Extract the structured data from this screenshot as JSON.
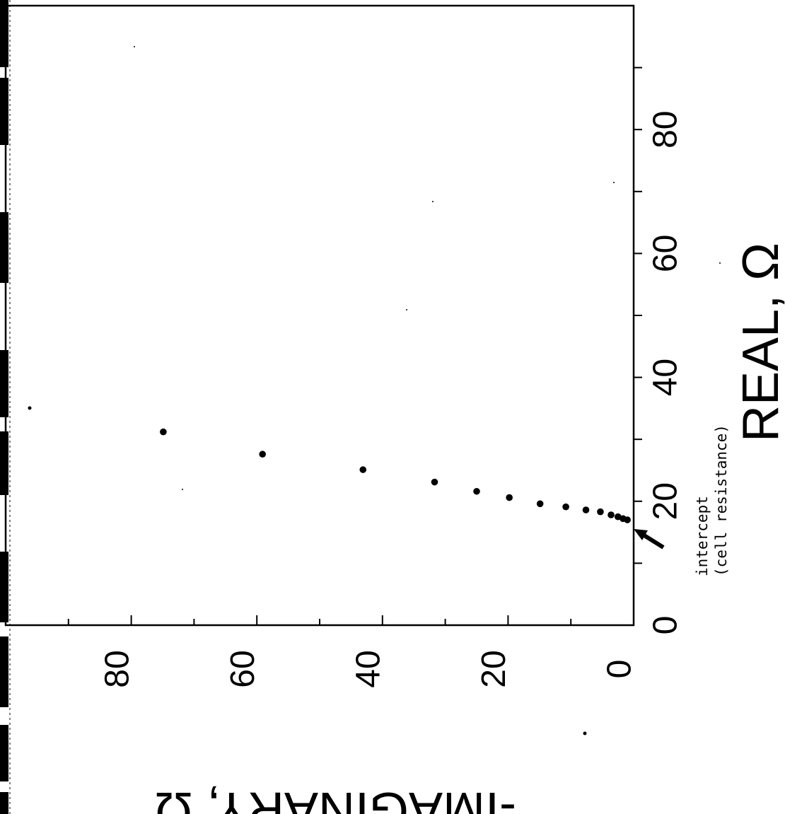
{
  "chart_data": {
    "type": "scatter",
    "title": "",
    "xlabel": "REAL, Ω",
    "ylabel": "-IMAGINARY, Ω",
    "xlim": [
      0,
      100
    ],
    "ylim": [
      0,
      100
    ],
    "x_ticks": [
      0,
      20,
      40,
      60,
      80
    ],
    "y_ticks": [
      0,
      20,
      40,
      60,
      80
    ],
    "grid": false,
    "points": [
      {
        "x": 17.0,
        "y": 1.0
      },
      {
        "x": 17.2,
        "y": 1.7
      },
      {
        "x": 17.5,
        "y": 2.5
      },
      {
        "x": 17.8,
        "y": 3.6
      },
      {
        "x": 18.3,
        "y": 5.3
      },
      {
        "x": 18.6,
        "y": 7.6
      },
      {
        "x": 19.1,
        "y": 10.8
      },
      {
        "x": 19.6,
        "y": 14.9
      },
      {
        "x": 20.6,
        "y": 19.8
      },
      {
        "x": 21.6,
        "y": 25.0
      },
      {
        "x": 23.1,
        "y": 31.7
      },
      {
        "x": 25.1,
        "y": 43.1
      },
      {
        "x": 27.6,
        "y": 59.1
      },
      {
        "x": 31.2,
        "y": 74.9
      }
    ],
    "annotation": {
      "lines": [
        "intercept",
        "(cell resistance)"
      ],
      "x": 16.0,
      "y": 0
    }
  },
  "colors": {
    "ink": "#000000",
    "background": "#ffffff"
  }
}
